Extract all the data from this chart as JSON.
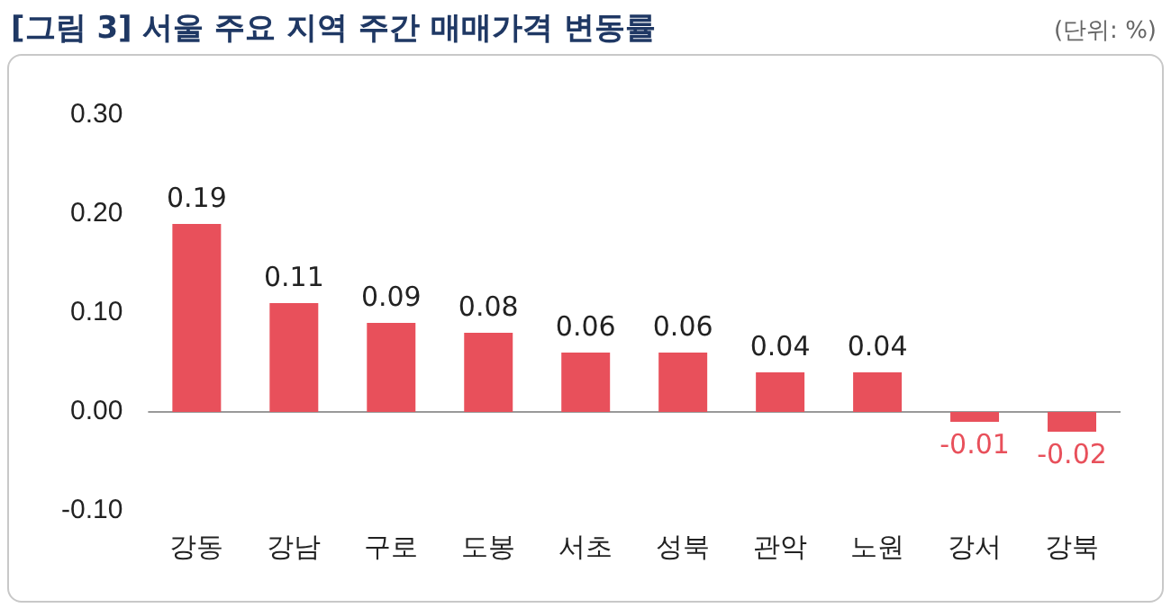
{
  "chart_data": {
    "type": "bar",
    "title": "[그림 3] 서울 주요 지역 주간 매매가격 변동률",
    "annotations": [
      "(단위: %)"
    ],
    "categories": [
      "강동",
      "강남",
      "구로",
      "도봉",
      "서초",
      "성북",
      "관악",
      "노원",
      "강서",
      "강북"
    ],
    "values": [
      0.19,
      0.11,
      0.09,
      0.08,
      0.06,
      0.06,
      0.04,
      0.04,
      -0.01,
      -0.02
    ],
    "color": "#e8505b",
    "ylim": [
      -0.1,
      0.3
    ],
    "yticks": [
      {
        "value": -0.1,
        "label": "-0.10"
      },
      {
        "value": 0,
        "label": "0.00"
      },
      {
        "value": 0.1,
        "label": "0.10"
      },
      {
        "value": 0.2,
        "label": "0.20"
      },
      {
        "value": 0.3,
        "label": "0.30"
      }
    ],
    "ref_lines": [
      {
        "axis": "y",
        "value": 0,
        "color": "#999999"
      }
    ],
    "grid": false,
    "legend": false,
    "data_labels": true
  }
}
